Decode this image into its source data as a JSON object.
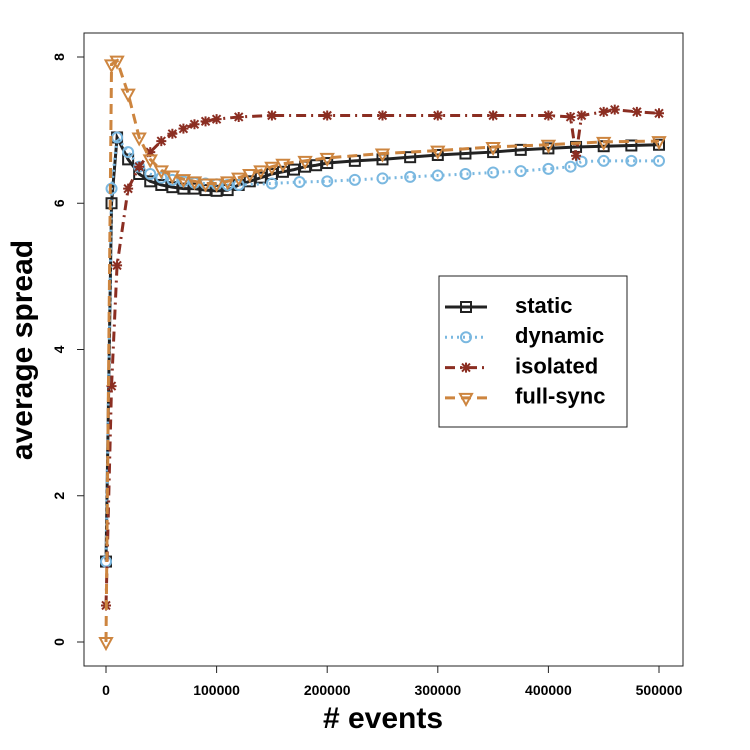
{
  "chart_data": {
    "type": "line",
    "x_label": "# events",
    "y_label": "average spread",
    "xlim": [
      0,
      500000
    ],
    "ylim": [
      0,
      8
    ],
    "xticks": [
      0,
      100000,
      200000,
      300000,
      400000,
      500000
    ],
    "yticks": [
      0,
      2,
      4,
      6,
      8
    ],
    "legend": "right",
    "series": [
      {
        "name": "static",
        "color": "#222222",
        "marker": "square",
        "dash": "solid",
        "x": [
          0,
          5000,
          10000,
          20000,
          30000,
          40000,
          50000,
          60000,
          70000,
          80000,
          90000,
          100000,
          110000,
          120000,
          130000,
          140000,
          150000,
          160000,
          170000,
          180000,
          190000,
          200000,
          225000,
          250000,
          275000,
          300000,
          325000,
          350000,
          375000,
          400000,
          425000,
          450000,
          475000,
          500000
        ],
        "values": [
          1.1,
          6.0,
          6.9,
          6.6,
          6.4,
          6.3,
          6.25,
          6.22,
          6.2,
          6.2,
          6.18,
          6.17,
          6.18,
          6.25,
          6.3,
          6.35,
          6.4,
          6.43,
          6.46,
          6.5,
          6.52,
          6.55,
          6.58,
          6.6,
          6.63,
          6.66,
          6.68,
          6.7,
          6.73,
          6.75,
          6.77,
          6.78,
          6.79,
          6.8
        ]
      },
      {
        "name": "dynamic",
        "color": "#7ab8e0",
        "marker": "circle",
        "dash": "dotted",
        "x": [
          0,
          5000,
          10000,
          20000,
          30000,
          40000,
          50000,
          60000,
          70000,
          80000,
          90000,
          100000,
          110000,
          120000,
          150000,
          175000,
          200000,
          225000,
          250000,
          275000,
          300000,
          325000,
          350000,
          375000,
          400000,
          420000,
          430000,
          450000,
          475000,
          500000
        ],
        "values": [
          1.1,
          6.2,
          6.9,
          6.7,
          6.5,
          6.4,
          6.35,
          6.32,
          6.3,
          6.28,
          6.27,
          6.26,
          6.25,
          6.25,
          6.27,
          6.29,
          6.3,
          6.32,
          6.34,
          6.36,
          6.38,
          6.4,
          6.42,
          6.44,
          6.47,
          6.5,
          6.57,
          6.58,
          6.58,
          6.58
        ]
      },
      {
        "name": "isolated",
        "color": "#8b2e22",
        "marker": "asterisk",
        "dash": "dotdash",
        "x": [
          0,
          5000,
          10000,
          20000,
          30000,
          40000,
          50000,
          60000,
          70000,
          80000,
          90000,
          100000,
          120000,
          150000,
          200000,
          250000,
          300000,
          350000,
          400000,
          420000,
          425000,
          430000,
          450000,
          460000,
          480000,
          500000
        ],
        "values": [
          0.5,
          3.5,
          5.15,
          6.2,
          6.5,
          6.7,
          6.85,
          6.95,
          7.02,
          7.08,
          7.12,
          7.15,
          7.18,
          7.2,
          7.2,
          7.2,
          7.2,
          7.2,
          7.2,
          7.18,
          6.65,
          7.2,
          7.25,
          7.28,
          7.25,
          7.23
        ]
      },
      {
        "name": "full-sync",
        "color": "#cd853f",
        "marker": "triangle-down",
        "dash": "dashed",
        "x": [
          0,
          5000,
          10000,
          20000,
          30000,
          40000,
          50000,
          60000,
          70000,
          80000,
          90000,
          100000,
          110000,
          120000,
          130000,
          140000,
          150000,
          160000,
          180000,
          200000,
          250000,
          300000,
          350000,
          400000,
          450000,
          500000
        ],
        "values": [
          0,
          7.9,
          7.95,
          7.5,
          6.9,
          6.6,
          6.45,
          6.38,
          6.33,
          6.3,
          6.27,
          6.27,
          6.3,
          6.35,
          6.4,
          6.45,
          6.5,
          6.54,
          6.58,
          6.62,
          6.68,
          6.72,
          6.77,
          6.8,
          6.84,
          6.85
        ]
      }
    ]
  }
}
